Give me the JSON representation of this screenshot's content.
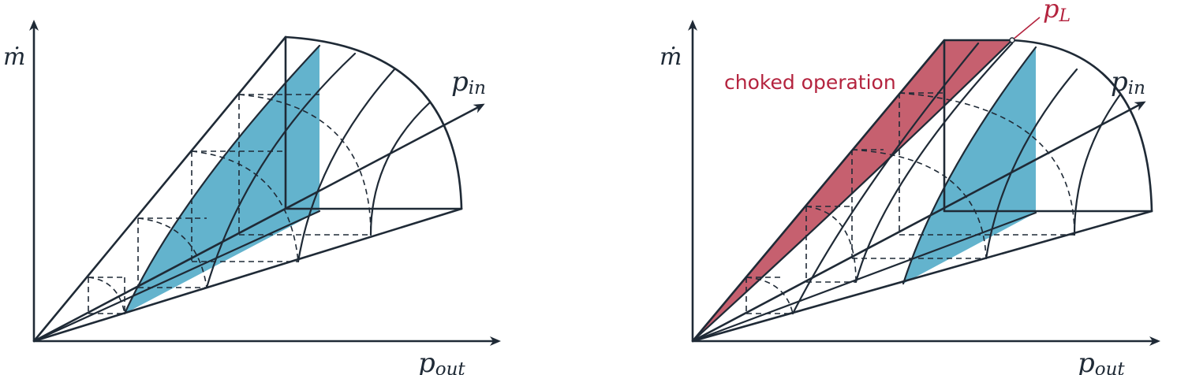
{
  "colors": {
    "ink": "#1f2a36",
    "blue_fill": "#63b3cd",
    "red_fill": "#c6606f",
    "red_text": "#b4233e"
  },
  "left_panel": {
    "y_axis_label": "ṁ",
    "x_axis_label": "p",
    "x_axis_sub": "out",
    "diag_axis_label": "p",
    "diag_axis_sub": "in"
  },
  "right_panel": {
    "y_axis_label": "ṁ",
    "x_axis_label": "p",
    "x_axis_sub": "out",
    "diag_axis_label": "p",
    "diag_axis_sub": "in",
    "choked_label": "choked operation",
    "limit_label": "p",
    "limit_sub": "L"
  }
}
